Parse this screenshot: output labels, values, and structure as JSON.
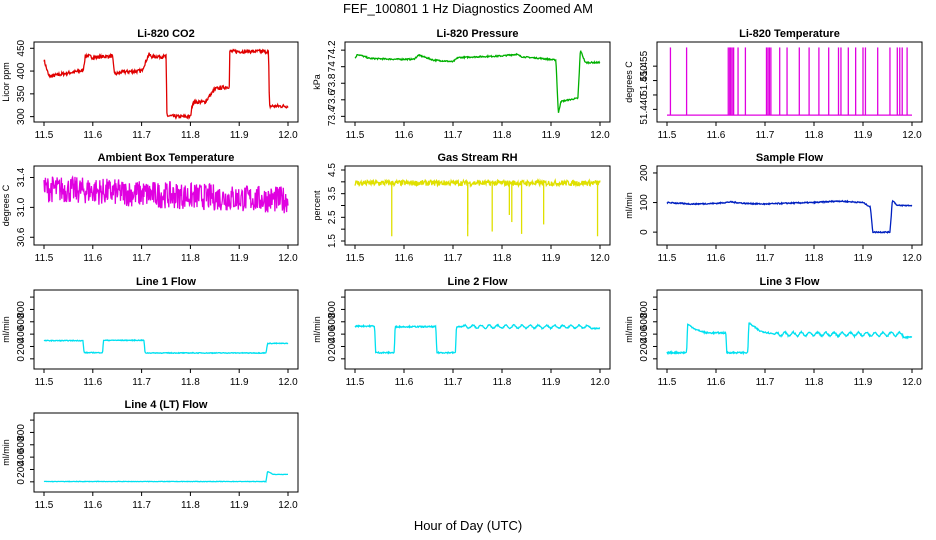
{
  "title": "FEF_100801  1 Hz Diagnostics Zoomed AM",
  "xlabel": "Hour of Day (UTC)",
  "chart_data": [
    {
      "type": "line",
      "title": "Li-820 CO2",
      "ylabel": "Licor ppm",
      "color": "#e00000",
      "xlim": [
        11.5,
        12.0
      ],
      "ylim": [
        297,
        455
      ],
      "xticks": [
        11.5,
        11.6,
        11.7,
        11.8,
        11.9,
        12.0
      ],
      "yticks": [
        300,
        350,
        400,
        450
      ],
      "x": [
        11.5,
        11.51,
        11.52,
        11.55,
        11.58,
        11.585,
        11.6,
        11.64,
        11.645,
        11.66,
        11.7,
        11.715,
        11.72,
        11.75,
        11.752,
        11.77,
        11.8,
        11.805,
        11.83,
        11.85,
        11.855,
        11.88,
        11.88,
        11.96,
        11.962,
        11.97,
        12.0
      ],
      "values": [
        425,
        388,
        390,
        396,
        401,
        435,
        430,
        433,
        393,
        398,
        400,
        437,
        432,
        432,
        302,
        300,
        300,
        332,
        332,
        360,
        362,
        366,
        443,
        443,
        323,
        323,
        323
      ],
      "noise": 4
    },
    {
      "type": "line",
      "title": "Li-820 Pressure",
      "ylabel": "kPa",
      "color": "#00b000",
      "xlim": [
        11.5,
        12.0
      ],
      "ylim": [
        73.38,
        74.25
      ],
      "xticks": [
        11.5,
        11.6,
        11.7,
        11.8,
        11.9,
        12.0
      ],
      "yticks": [
        73.4,
        73.6,
        73.8,
        74.0,
        74.2
      ],
      "x": [
        11.5,
        11.505,
        11.53,
        11.58,
        11.62,
        11.63,
        11.66,
        11.7,
        11.71,
        11.75,
        11.8,
        11.83,
        11.84,
        11.88,
        11.91,
        11.915,
        11.92,
        11.955,
        11.96,
        11.97,
        12.0
      ],
      "values": [
        74.1,
        74.15,
        74.1,
        74.09,
        74.09,
        74.14,
        74.08,
        74.06,
        74.11,
        74.12,
        74.13,
        74.15,
        74.12,
        74.1,
        74.08,
        73.43,
        73.58,
        73.62,
        74.2,
        74.05,
        74.05
      ],
      "noise": 0.008
    },
    {
      "type": "line",
      "title": "Li-820 Temperature",
      "ylabel": "degrees C",
      "color": "#e000e0",
      "xlim": [
        11.5,
        12.0
      ],
      "ylim": [
        51.437,
        51.462
      ],
      "xticks": [
        11.5,
        11.6,
        11.7,
        11.8,
        11.9,
        12.0
      ],
      "yticks": [
        51.44,
        51.445,
        51.45,
        51.455
      ],
      "ytick_labels": [
        "51.440",
        "",
        "51.450",
        "51.455"
      ],
      "x": [
        11.5,
        12.0
      ],
      "values": [
        51.438,
        51.438
      ],
      "spikes": [
        11.507,
        11.54,
        11.625,
        11.628,
        11.63,
        11.633,
        11.636,
        11.645,
        11.66,
        11.703,
        11.706,
        11.709,
        11.712,
        11.73,
        11.745,
        11.77,
        11.79,
        11.81,
        11.83,
        11.85,
        11.855,
        11.87,
        11.885,
        11.9,
        11.905,
        11.93,
        11.955,
        11.97,
        11.975,
        11.98,
        11.99
      ]
    },
    {
      "type": "line",
      "title": "Ambient Box Temperature",
      "ylabel": "degrees C",
      "color": "#e000e0",
      "xlim": [
        11.5,
        12.0
      ],
      "ylim": [
        30.55,
        31.5
      ],
      "xticks": [
        11.5,
        11.6,
        11.7,
        11.8,
        11.9,
        12.0
      ],
      "yticks": [
        30.6,
        31.0,
        31.4
      ],
      "ytick_labels": [
        "30.6",
        "31.0",
        "31.4"
      ],
      "x": [
        11.5,
        11.6,
        11.7,
        11.8,
        11.9,
        12.0
      ],
      "values": [
        31.25,
        31.22,
        31.18,
        31.15,
        31.12,
        31.1
      ],
      "noise": 0.18
    },
    {
      "type": "line",
      "title": "Gas Stream RH",
      "ylabel": "percent",
      "color": "#e0e000",
      "xlim": [
        11.5,
        12.0
      ],
      "ylim": [
        1.5,
        4.5
      ],
      "xticks": [
        11.5,
        11.6,
        11.7,
        11.8,
        11.9,
        12.0
      ],
      "yticks": [
        1.5,
        2.5,
        3.5,
        4.5
      ],
      "ytick_labels": [
        "1.5",
        "2.5",
        "3.5",
        "4.5"
      ],
      "minor_yticks": [
        2.0,
        3.0,
        4.0
      ],
      "x": [
        11.5,
        12.0
      ],
      "values": [
        3.95,
        3.95
      ],
      "noise": 0.12,
      "dips": [
        [
          11.575,
          1.7
        ],
        [
          11.73,
          1.7
        ],
        [
          11.73,
          2.2
        ],
        [
          11.78,
          1.9
        ],
        [
          11.815,
          2.6
        ],
        [
          11.82,
          2.3
        ],
        [
          11.84,
          1.8
        ],
        [
          11.885,
          2.2
        ],
        [
          11.995,
          1.7
        ]
      ]
    },
    {
      "type": "line",
      "title": "Sample Flow",
      "ylabel": "ml/min",
      "color": "#0020c0",
      "xlim": [
        11.5,
        12.0
      ],
      "ylim": [
        -30,
        210
      ],
      "xticks": [
        11.5,
        11.6,
        11.7,
        11.8,
        11.9,
        12.0
      ],
      "yticks": [
        0,
        100,
        200
      ],
      "x": [
        11.5,
        11.55,
        11.6,
        11.63,
        11.66,
        11.7,
        11.75,
        11.8,
        11.85,
        11.9,
        11.915,
        11.92,
        11.955,
        11.96,
        11.97,
        12.0
      ],
      "values": [
        100,
        95,
        97,
        102,
        97,
        95,
        98,
        100,
        105,
        100,
        85,
        0,
        0,
        108,
        90,
        90
      ],
      "noise": 2
    },
    {
      "type": "line",
      "title": "Line 1 Flow",
      "ylabel": "ml/min",
      "color": "#00e0f0",
      "xlim": [
        11.5,
        12.0
      ],
      "ylim": [
        -100,
        1050
      ],
      "xticks": [
        11.5,
        11.6,
        11.7,
        11.8,
        11.9,
        12.0
      ],
      "yticks": [
        0,
        200,
        400,
        600,
        800,
        1000
      ],
      "ytick_labels": [
        "0",
        "200",
        "400",
        "600",
        "800",
        ""
      ],
      "x": [
        11.5,
        11.58,
        11.582,
        11.62,
        11.622,
        11.705,
        11.707,
        11.955,
        11.958,
        12.0
      ],
      "values": [
        295,
        295,
        100,
        100,
        300,
        300,
        95,
        95,
        250,
        250
      ],
      "noise": 6
    },
    {
      "type": "line",
      "title": "Line 2 Flow",
      "ylabel": "ml/min",
      "color": "#00e0f0",
      "xlim": [
        11.5,
        12.0
      ],
      "ylim": [
        -100,
        1050
      ],
      "xticks": [
        11.5,
        11.6,
        11.7,
        11.8,
        11.9,
        12.0
      ],
      "yticks": [
        0,
        200,
        400,
        600,
        800,
        1000
      ],
      "ytick_labels": [
        "0",
        "200",
        "400",
        "600",
        "800",
        ""
      ],
      "x": [
        11.5,
        11.54,
        11.542,
        11.58,
        11.582,
        11.665,
        11.667,
        11.705,
        11.707,
        11.98,
        11.982,
        12.0
      ],
      "values": [
        530,
        530,
        100,
        100,
        520,
        520,
        100,
        100,
        520,
        520,
        490,
        490
      ],
      "noise": 10,
      "wave": [
        11.72,
        11.98,
        25
      ]
    },
    {
      "type": "line",
      "title": "Line 3 Flow",
      "ylabel": "ml/min",
      "color": "#00e0f0",
      "xlim": [
        11.5,
        12.0
      ],
      "ylim": [
        -100,
        1050
      ],
      "xticks": [
        11.5,
        11.6,
        11.7,
        11.8,
        11.9,
        12.0
      ],
      "yticks": [
        0,
        200,
        400,
        600,
        800,
        1000
      ],
      "ytick_labels": [
        "0",
        "200",
        "400",
        "600",
        "800",
        ""
      ],
      "x": [
        11.5,
        11.54,
        11.542,
        11.56,
        11.58,
        11.62,
        11.622,
        11.665,
        11.667,
        11.69,
        11.72,
        11.98,
        11.982,
        12.0
      ],
      "values": [
        100,
        100,
        560,
        470,
        420,
        420,
        100,
        100,
        580,
        450,
        400,
        400,
        350,
        350
      ],
      "noise": 12,
      "wave": [
        11.72,
        11.98,
        30
      ]
    },
    {
      "type": "line",
      "title": "Line 4 (LT) Flow",
      "ylabel": "ml/min",
      "color": "#00e0f0",
      "xlim": [
        11.5,
        12.0
      ],
      "ylim": [
        -100,
        1050
      ],
      "xticks": [
        11.5,
        11.6,
        11.7,
        11.8,
        11.9,
        12.0
      ],
      "yticks": [
        0,
        200,
        400,
        600,
        800,
        1000
      ],
      "ytick_labels": [
        "0",
        "200",
        "400",
        "600",
        "800",
        ""
      ],
      "x": [
        11.5,
        11.955,
        11.958,
        11.97,
        12.0
      ],
      "values": [
        5,
        5,
        170,
        120,
        120
      ],
      "noise": 3
    }
  ]
}
